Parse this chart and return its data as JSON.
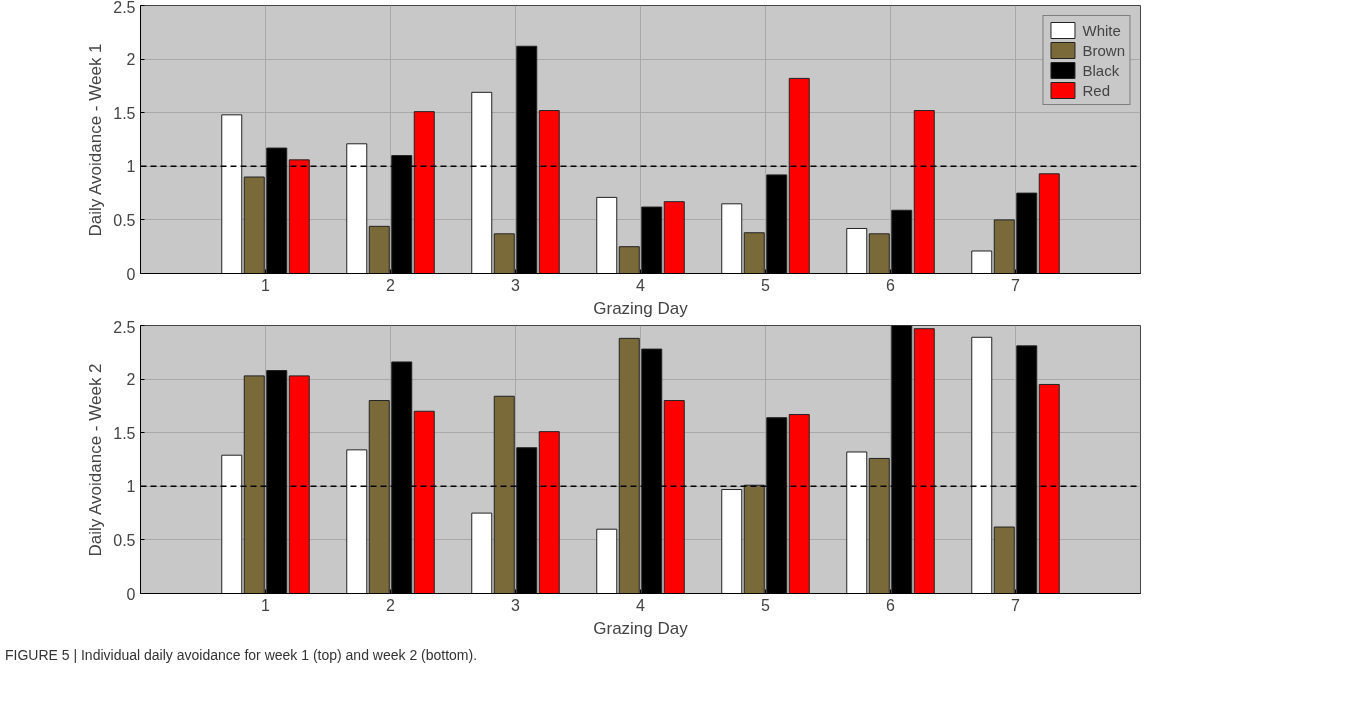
{
  "chart_data": [
    {
      "type": "bar",
      "x": [
        1,
        2,
        3,
        4,
        5,
        6,
        7
      ],
      "xlim": [
        0,
        8
      ],
      "xticks": [
        1,
        2,
        3,
        4,
        5,
        6,
        7
      ],
      "ylim": [
        0,
        2.5
      ],
      "yticks": [
        0,
        0.5,
        1,
        1.5,
        2,
        2.5
      ],
      "xlabel": "Grazing Day",
      "ylabel": "Daily Avoidance - Week 1",
      "grid": true,
      "legend": "top right",
      "ref_lines": [
        {
          "axis": "y",
          "value": 1,
          "color": "#000000",
          "line_style": "dashed"
        }
      ],
      "series": [
        {
          "name": "White",
          "color": "#ffffff",
          "values": [
            1.48,
            1.21,
            1.69,
            0.71,
            0.65,
            0.42,
            0.21
          ]
        },
        {
          "name": "Brown",
          "color": "#7a6a3a",
          "values": [
            0.9,
            0.44,
            0.37,
            0.25,
            0.38,
            0.37,
            0.5
          ]
        },
        {
          "name": "Black",
          "color": "#000000",
          "values": [
            1.17,
            1.1,
            2.12,
            0.62,
            0.92,
            0.59,
            0.75
          ]
        },
        {
          "name": "Red",
          "color": "#ff0000",
          "values": [
            1.06,
            1.51,
            1.52,
            0.67,
            1.82,
            1.52,
            0.93
          ]
        }
      ]
    },
    {
      "type": "bar",
      "x": [
        1,
        2,
        3,
        4,
        5,
        6,
        7
      ],
      "xlim": [
        0,
        8
      ],
      "xticks": [
        1,
        2,
        3,
        4,
        5,
        6,
        7
      ],
      "ylim": [
        0,
        2.5
      ],
      "yticks": [
        0,
        0.5,
        1,
        1.5,
        2,
        2.5
      ],
      "xlabel": "Grazing Day",
      "ylabel": "Daily Avoidance - Week 2",
      "grid": true,
      "ref_lines": [
        {
          "axis": "y",
          "value": 1,
          "color": "#000000",
          "line_style": "dashed"
        }
      ],
      "annotations": [
        "FIGURE 5 | Individual daily avoidance for week 1 (top) and week 2 (bottom)."
      ],
      "series": [
        {
          "color": "#ffffff",
          "values": [
            1.29,
            1.34,
            0.75,
            0.6,
            0.97,
            1.32,
            2.39
          ]
        },
        {
          "color": "#7a6a3a",
          "values": [
            2.03,
            1.8,
            1.84,
            2.38,
            1.01,
            1.26,
            0.62
          ]
        },
        {
          "color": "#000000",
          "values": [
            2.08,
            2.16,
            1.36,
            2.28,
            1.64,
            2.5,
            2.31
          ]
        },
        {
          "color": "#ff0000",
          "values": [
            2.03,
            1.7,
            1.51,
            1.8,
            1.67,
            2.47,
            1.95
          ]
        }
      ]
    }
  ]
}
